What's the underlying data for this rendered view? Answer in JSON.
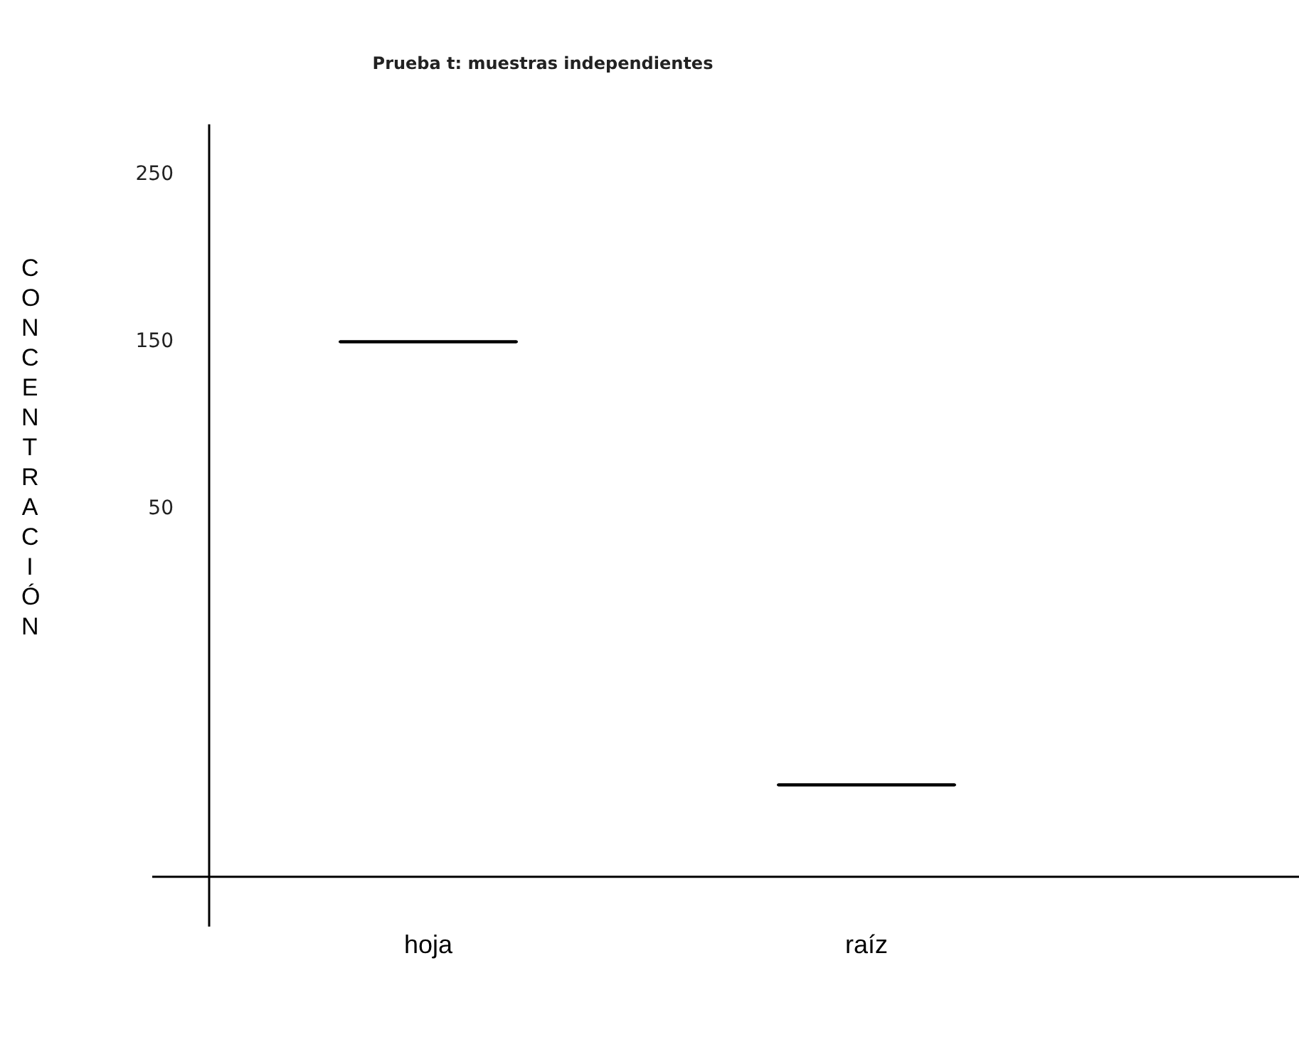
{
  "chart_data": {
    "type": "box",
    "title": "Prueba t: muestras independientes",
    "ylabel": "CONCENTRACIÓN",
    "categories": [
      "hoja",
      "raíz"
    ],
    "boxes": [
      {
        "low": 150,
        "q1": 150,
        "median": 150,
        "q3": 150,
        "high": 150
      },
      {
        "low": -115,
        "q1": -115,
        "median": -115,
        "q3": -115,
        "high": -115
      }
    ],
    "color": "#000000",
    "ylim": [
      -170,
      280
    ],
    "yticks": [
      250,
      150,
      50
    ],
    "grid": false,
    "legend": false
  }
}
